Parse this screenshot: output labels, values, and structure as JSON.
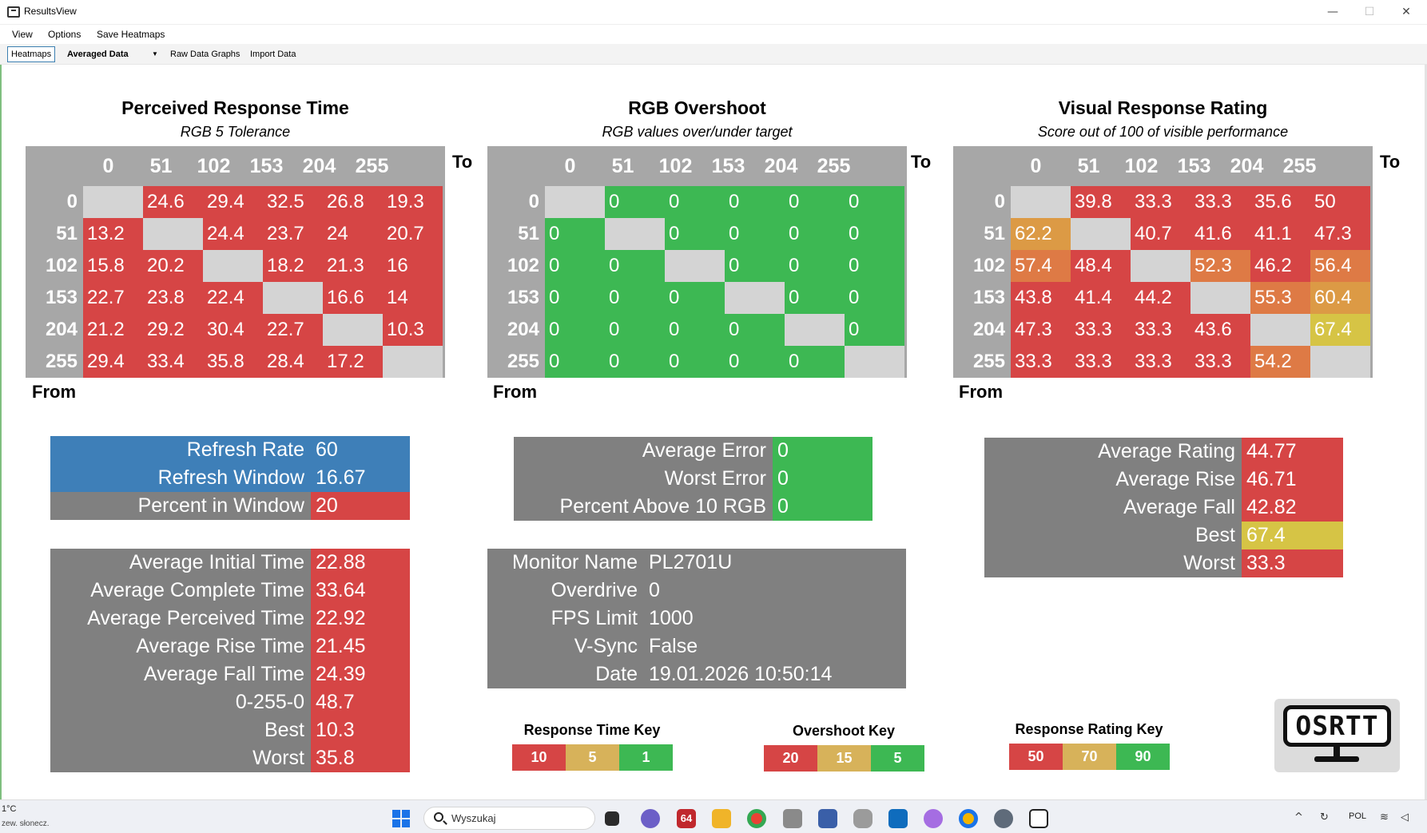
{
  "window": {
    "title": "ResultsView",
    "minimize": "—",
    "maximize": "☐",
    "close": "✕"
  },
  "menu": [
    "View",
    "Options",
    "Save Heatmaps"
  ],
  "toolbar": {
    "heatmaps": "Heatmaps",
    "averaged": "Averaged Data",
    "dropdown": "▼",
    "raw": "Raw Data Graphs",
    "import": "Import Data"
  },
  "colors": {
    "red": "#d64545",
    "orange": "#de7a45",
    "amber": "#dc9a45",
    "yellow": "#d6c445",
    "green": "#3db853",
    "blue": "#3e7fb8",
    "gray": "#808080",
    "empty": "#d4d4d4",
    "keytan": "#d7b25a"
  },
  "labels": {
    "to": "To",
    "from": "From"
  },
  "heatmaps": [
    {
      "title": "Perceived Response Time",
      "subtitle": "RGB 5 Tolerance",
      "columns": [
        "0",
        "51",
        "102",
        "153",
        "204",
        "255"
      ],
      "rows": [
        "0",
        "51",
        "102",
        "153",
        "204",
        "255"
      ],
      "cells": [
        [
          "",
          "24.6",
          "29.4",
          "32.5",
          "26.8",
          "19.3"
        ],
        [
          "13.2",
          "",
          "24.4",
          "23.7",
          "24",
          "20.7"
        ],
        [
          "15.8",
          "20.2",
          "",
          "18.2",
          "21.3",
          "16"
        ],
        [
          "22.7",
          "23.8",
          "22.4",
          "",
          "16.6",
          "14"
        ],
        [
          "21.2",
          "29.2",
          "30.4",
          "22.7",
          "",
          "10.3"
        ],
        [
          "29.4",
          "33.4",
          "35.8",
          "28.4",
          "17.2",
          ""
        ]
      ],
      "cell_colors": [
        [
          "empty",
          "red",
          "red",
          "red",
          "red",
          "red"
        ],
        [
          "red",
          "empty",
          "red",
          "red",
          "red",
          "red"
        ],
        [
          "red",
          "red",
          "empty",
          "red",
          "red",
          "red"
        ],
        [
          "red",
          "red",
          "red",
          "empty",
          "red",
          "red"
        ],
        [
          "red",
          "red",
          "red",
          "red",
          "empty",
          "red"
        ],
        [
          "red",
          "red",
          "red",
          "red",
          "red",
          "empty"
        ]
      ]
    },
    {
      "title": "RGB Overshoot",
      "subtitle": "RGB values over/under target",
      "columns": [
        "0",
        "51",
        "102",
        "153",
        "204",
        "255"
      ],
      "rows": [
        "0",
        "51",
        "102",
        "153",
        "204",
        "255"
      ],
      "cells": [
        [
          "",
          "0",
          "0",
          "0",
          "0",
          "0"
        ],
        [
          "0",
          "",
          "0",
          "0",
          "0",
          "0"
        ],
        [
          "0",
          "0",
          "",
          "0",
          "0",
          "0"
        ],
        [
          "0",
          "0",
          "0",
          "",
          "0",
          "0"
        ],
        [
          "0",
          "0",
          "0",
          "0",
          "",
          "0"
        ],
        [
          "0",
          "0",
          "0",
          "0",
          "0",
          ""
        ]
      ],
      "cell_colors": [
        [
          "empty",
          "green",
          "green",
          "green",
          "green",
          "green"
        ],
        [
          "green",
          "empty",
          "green",
          "green",
          "green",
          "green"
        ],
        [
          "green",
          "green",
          "empty",
          "green",
          "green",
          "green"
        ],
        [
          "green",
          "green",
          "green",
          "empty",
          "green",
          "green"
        ],
        [
          "green",
          "green",
          "green",
          "green",
          "empty",
          "green"
        ],
        [
          "green",
          "green",
          "green",
          "green",
          "green",
          "empty"
        ]
      ]
    },
    {
      "title": "Visual Response Rating",
      "subtitle": "Score out of 100 of visible performance",
      "columns": [
        "0",
        "51",
        "102",
        "153",
        "204",
        "255"
      ],
      "rows": [
        "0",
        "51",
        "102",
        "153",
        "204",
        "255"
      ],
      "cells": [
        [
          "",
          "39.8",
          "33.3",
          "33.3",
          "35.6",
          "50"
        ],
        [
          "62.2",
          "",
          "40.7",
          "41.6",
          "41.1",
          "47.3"
        ],
        [
          "57.4",
          "48.4",
          "",
          "52.3",
          "46.2",
          "56.4"
        ],
        [
          "43.8",
          "41.4",
          "44.2",
          "",
          "55.3",
          "60.4"
        ],
        [
          "47.3",
          "33.3",
          "33.3",
          "43.6",
          "",
          "67.4"
        ],
        [
          "33.3",
          "33.3",
          "33.3",
          "33.3",
          "54.2",
          ""
        ]
      ],
      "cell_colors": [
        [
          "empty",
          "red",
          "red",
          "red",
          "red",
          "red"
        ],
        [
          "amber",
          "empty",
          "red",
          "red",
          "red",
          "red"
        ],
        [
          "orange",
          "red",
          "empty",
          "orange",
          "red",
          "orange"
        ],
        [
          "red",
          "red",
          "red",
          "empty",
          "orange",
          "amber"
        ],
        [
          "red",
          "red",
          "red",
          "red",
          "empty",
          "yellow"
        ],
        [
          "red",
          "red",
          "red",
          "red",
          "orange",
          "empty"
        ]
      ]
    }
  ],
  "panels": {
    "refresh": [
      {
        "label": "Refresh Rate",
        "value": "60",
        "label_color": "blue",
        "value_color": "blue"
      },
      {
        "label": "Refresh Window",
        "value": "16.67",
        "label_color": "blue",
        "value_color": "blue"
      },
      {
        "label": "Percent in Window",
        "value": "20",
        "label_color": "gray",
        "value_color": "red"
      }
    ],
    "response": [
      {
        "label": "Average Initial Time",
        "value": "22.88"
      },
      {
        "label": "Average Complete Time",
        "value": "33.64"
      },
      {
        "label": "Average Perceived Time",
        "value": "22.92"
      },
      {
        "label": "Average Rise Time",
        "value": "21.45"
      },
      {
        "label": "Average Fall Time",
        "value": "24.39"
      },
      {
        "label": "0-255-0",
        "value": "48.7"
      },
      {
        "label": "Best",
        "value": "10.3"
      },
      {
        "label": "Worst",
        "value": "35.8"
      }
    ],
    "error": [
      {
        "label": "Average Error",
        "value": "0"
      },
      {
        "label": "Worst Error",
        "value": "0"
      },
      {
        "label": "Percent Above 10 RGB",
        "value": "0"
      }
    ],
    "monitor": [
      {
        "label": "Monitor Name",
        "value": "PL2701U"
      },
      {
        "label": "Overdrive",
        "value": "0"
      },
      {
        "label": "FPS Limit",
        "value": "1000"
      },
      {
        "label": "V-Sync",
        "value": "False"
      },
      {
        "label": "Date",
        "value": "19.01.2026 10:50:14"
      }
    ],
    "rating": [
      {
        "label": "Average Rating",
        "value": "44.77",
        "value_color": "red"
      },
      {
        "label": "Average Rise",
        "value": "46.71",
        "value_color": "red"
      },
      {
        "label": "Average Fall",
        "value": "42.82",
        "value_color": "red"
      },
      {
        "label": "Best",
        "value": "67.4",
        "value_color": "yellow"
      },
      {
        "label": "Worst",
        "value": "33.3",
        "value_color": "red"
      }
    ]
  },
  "keys": [
    {
      "title": "Response Time Key",
      "values": [
        "10",
        "5",
        "1"
      ]
    },
    {
      "title": "Overshoot Key",
      "values": [
        "20",
        "15",
        "5"
      ]
    },
    {
      "title": "Response Rating Key",
      "values": [
        "50",
        "70",
        "90"
      ]
    }
  ],
  "logo_text": "OSRTT",
  "taskbar": {
    "weather_temp": "1°C",
    "weather_desc": "zew. słonecz.",
    "search_placeholder": "Wyszukaj",
    "app_badge": "64",
    "lang": "POL",
    "icons": [
      "start-icon",
      "task-view-icon",
      "teams-icon",
      "app-64-icon",
      "file-explorer-icon",
      "chrome-icon",
      "drive-icon",
      "network-icon",
      "database-icon",
      "outlook-icon",
      "copilot-icon",
      "chrome-dev-icon",
      "settings-icon",
      "osrtt-icon"
    ]
  }
}
